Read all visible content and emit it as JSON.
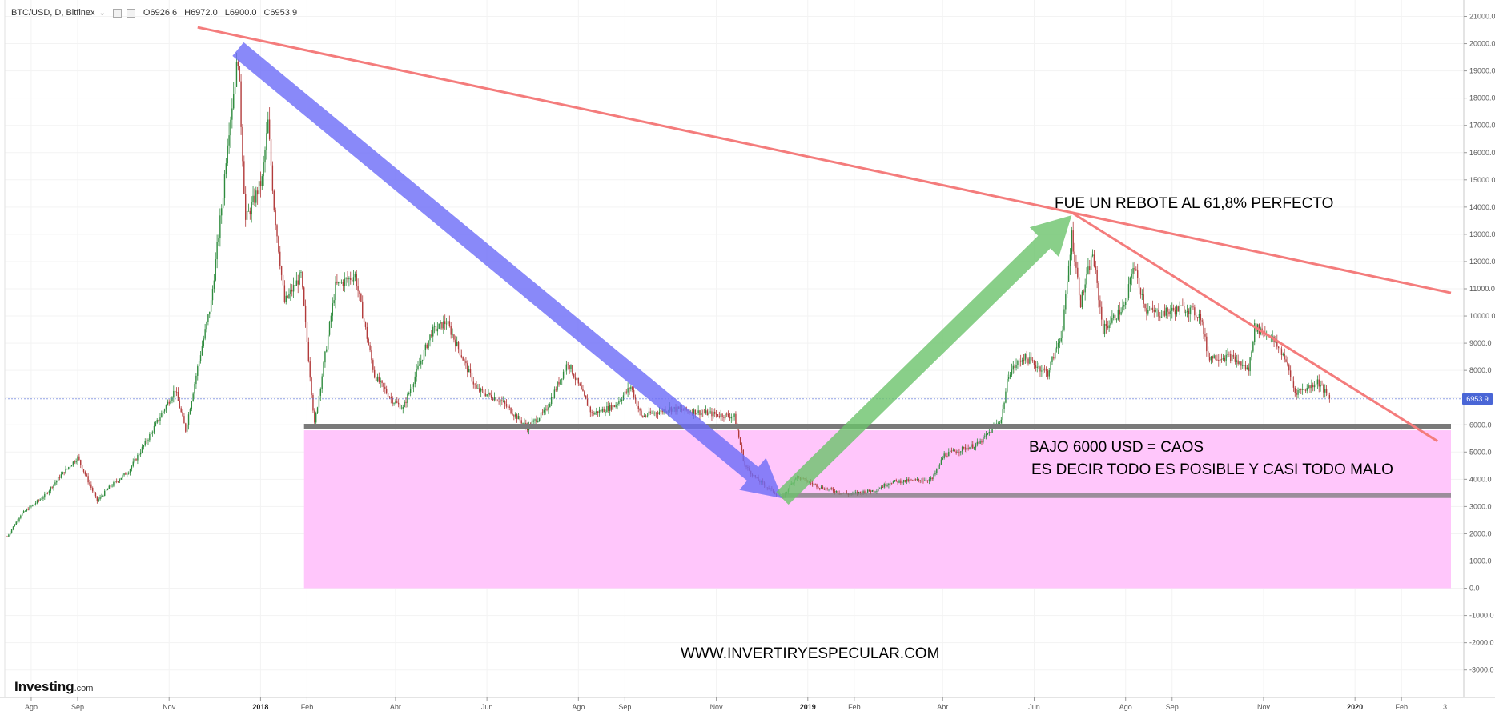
{
  "header": {
    "symbol": "BTC/USD, D, Bitfinex",
    "chevron": "⌄",
    "ohlc": {
      "open": "O6926.6",
      "high": "H6972.0",
      "low": "L6900.0",
      "close": "C6953.9"
    }
  },
  "colors": {
    "up": "#26a69a",
    "down": "#b23b3b",
    "candle_up": "#2e8b3d",
    "candle_down": "#b23b3b",
    "trendline": "#f47c7c",
    "blue_arrow": "#6b6bf7",
    "green_arrow": "#6cc36c",
    "support": "#7a7a7a",
    "pink_zone": "#ffc6fb",
    "last_price_label": "#4a66d6",
    "axis_text": "#555555"
  },
  "annotations": {
    "rebound": "FUE UN REBOTE AL 61,8% PERFECTO",
    "below_line1": "BAJO 6000 USD = CAOS",
    "below_line2": "ES DECIR TODO ES POSIBLE Y CASI TODO MALO",
    "website": "WWW.INVERTIRYESPECULAR.COM"
  },
  "brand": {
    "name": "Investing",
    "suffix": ".com"
  },
  "chart_data": {
    "type": "candlestick",
    "symbol": "BTC/USD",
    "timeframe": "D",
    "exchange": "Bitfinex",
    "last_price": "6953.9",
    "ylim": [
      -3500,
      21500
    ],
    "y_ticks": [
      {
        "value": 21000,
        "label": "21000.0"
      },
      {
        "value": 20000,
        "label": "20000.0"
      },
      {
        "value": 19000,
        "label": "19000.0"
      },
      {
        "value": 18000,
        "label": "18000.0"
      },
      {
        "value": 17000,
        "label": "17000.0"
      },
      {
        "value": 16000,
        "label": "16000.0"
      },
      {
        "value": 15000,
        "label": "15000.0"
      },
      {
        "value": 14000,
        "label": "14000.0"
      },
      {
        "value": 13000,
        "label": "13000.0"
      },
      {
        "value": 12000,
        "label": "12000.0"
      },
      {
        "value": 11000,
        "label": "11000.0"
      },
      {
        "value": 10000,
        "label": "10000.0"
      },
      {
        "value": 9000,
        "label": "9000.0"
      },
      {
        "value": 8000,
        "label": "8000.0"
      },
      {
        "value": 7000,
        "label": "7000.0"
      },
      {
        "value": 6000,
        "label": "6000.0"
      },
      {
        "value": 5000,
        "label": "5000.0"
      },
      {
        "value": 4000,
        "label": "4000.0"
      },
      {
        "value": 3000,
        "label": "3000.0"
      },
      {
        "value": 2000,
        "label": "2000.0"
      },
      {
        "value": 1000,
        "label": "1000.0"
      },
      {
        "value": 0,
        "label": "0.0"
      },
      {
        "value": -1000,
        "label": "-1000.0"
      },
      {
        "value": -2000,
        "label": "-2000.0"
      },
      {
        "value": -3000,
        "label": "-3000.0"
      }
    ],
    "x_ticks": [
      {
        "date": "2017-08-01",
        "label": "Ago",
        "bold": false
      },
      {
        "date": "2017-09-01",
        "label": "Sep",
        "bold": false
      },
      {
        "date": "2017-11-01",
        "label": "Nov",
        "bold": false
      },
      {
        "date": "2018-01-01",
        "label": "2018",
        "bold": true
      },
      {
        "date": "2018-02-01",
        "label": "Feb",
        "bold": false
      },
      {
        "date": "2018-04-01",
        "label": "Abr",
        "bold": false
      },
      {
        "date": "2018-06-01",
        "label": "Jun",
        "bold": false
      },
      {
        "date": "2018-08-01",
        "label": "Ago",
        "bold": false
      },
      {
        "date": "2018-09-01",
        "label": "Sep",
        "bold": false
      },
      {
        "date": "2018-11-01",
        "label": "Nov",
        "bold": false
      },
      {
        "date": "2019-01-01",
        "label": "2019",
        "bold": true
      },
      {
        "date": "2019-02-01",
        "label": "Feb",
        "bold": false
      },
      {
        "date": "2019-04-01",
        "label": "Abr",
        "bold": false
      },
      {
        "date": "2019-06-01",
        "label": "Jun",
        "bold": false
      },
      {
        "date": "2019-08-01",
        "label": "Ago",
        "bold": false
      },
      {
        "date": "2019-09-01",
        "label": "Sep",
        "bold": false
      },
      {
        "date": "2019-11-01",
        "label": "Nov",
        "bold": false
      },
      {
        "date": "2020-01-01",
        "label": "2020",
        "bold": true
      },
      {
        "date": "2020-02-01",
        "label": "Feb",
        "bold": false
      },
      {
        "date": "2020-03-01",
        "label": "3",
        "bold": false
      }
    ],
    "price_path": [
      {
        "date": "2017-07-16",
        "price": 1900
      },
      {
        "date": "2017-07-25",
        "price": 2700
      },
      {
        "date": "2017-08-10",
        "price": 3400
      },
      {
        "date": "2017-08-20",
        "price": 4100
      },
      {
        "date": "2017-09-01",
        "price": 4800
      },
      {
        "date": "2017-09-14",
        "price": 3200
      },
      {
        "date": "2017-09-22",
        "price": 3700
      },
      {
        "date": "2017-10-05",
        "price": 4300
      },
      {
        "date": "2017-10-20",
        "price": 5700
      },
      {
        "date": "2017-11-05",
        "price": 7300
      },
      {
        "date": "2017-11-12",
        "price": 5800
      },
      {
        "date": "2017-11-20",
        "price": 8100
      },
      {
        "date": "2017-11-29",
        "price": 10500
      },
      {
        "date": "2017-12-07",
        "price": 14500
      },
      {
        "date": "2017-12-10",
        "price": 16500
      },
      {
        "date": "2017-12-17",
        "price": 19500
      },
      {
        "date": "2017-12-22",
        "price": 13500
      },
      {
        "date": "2018-01-02",
        "price": 15000
      },
      {
        "date": "2018-01-06",
        "price": 17100
      },
      {
        "date": "2018-01-10",
        "price": 14000
      },
      {
        "date": "2018-01-17",
        "price": 10500
      },
      {
        "date": "2018-01-28",
        "price": 11500
      },
      {
        "date": "2018-02-06",
        "price": 6000
      },
      {
        "date": "2018-02-20",
        "price": 11100
      },
      {
        "date": "2018-03-05",
        "price": 11500
      },
      {
        "date": "2018-03-18",
        "price": 7800
      },
      {
        "date": "2018-03-30",
        "price": 6900
      },
      {
        "date": "2018-04-06",
        "price": 6600
      },
      {
        "date": "2018-04-25",
        "price": 9400
      },
      {
        "date": "2018-05-05",
        "price": 9800
      },
      {
        "date": "2018-05-25",
        "price": 7300
      },
      {
        "date": "2018-06-10",
        "price": 6900
      },
      {
        "date": "2018-06-28",
        "price": 5900
      },
      {
        "date": "2018-07-10",
        "price": 6500
      },
      {
        "date": "2018-07-25",
        "price": 8300
      },
      {
        "date": "2018-08-10",
        "price": 6400
      },
      {
        "date": "2018-08-25",
        "price": 6700
      },
      {
        "date": "2018-09-05",
        "price": 7400
      },
      {
        "date": "2018-09-12",
        "price": 6300
      },
      {
        "date": "2018-10-01",
        "price": 6600
      },
      {
        "date": "2018-10-15",
        "price": 6500
      },
      {
        "date": "2018-11-13",
        "price": 6300
      },
      {
        "date": "2018-11-20",
        "price": 4500
      },
      {
        "date": "2018-11-28",
        "price": 4000
      },
      {
        "date": "2018-12-15",
        "price": 3300
      },
      {
        "date": "2018-12-24",
        "price": 4100
      },
      {
        "date": "2019-01-10",
        "price": 3700
      },
      {
        "date": "2019-01-28",
        "price": 3450
      },
      {
        "date": "2019-02-15",
        "price": 3600
      },
      {
        "date": "2019-02-25",
        "price": 3900
      },
      {
        "date": "2019-03-25",
        "price": 4000
      },
      {
        "date": "2019-04-02",
        "price": 4900
      },
      {
        "date": "2019-04-25",
        "price": 5300
      },
      {
        "date": "2019-05-10",
        "price": 6200
      },
      {
        "date": "2019-05-15",
        "price": 7900
      },
      {
        "date": "2019-05-25",
        "price": 8500
      },
      {
        "date": "2019-06-10",
        "price": 7900
      },
      {
        "date": "2019-06-20",
        "price": 9500
      },
      {
        "date": "2019-06-26",
        "price": 13000
      },
      {
        "date": "2019-07-02",
        "price": 10500
      },
      {
        "date": "2019-07-10",
        "price": 12300
      },
      {
        "date": "2019-07-17",
        "price": 9500
      },
      {
        "date": "2019-08-01",
        "price": 10400
      },
      {
        "date": "2019-08-06",
        "price": 11900
      },
      {
        "date": "2019-08-15",
        "price": 10200
      },
      {
        "date": "2019-08-25",
        "price": 10100
      },
      {
        "date": "2019-09-10",
        "price": 10300
      },
      {
        "date": "2019-09-20",
        "price": 10000
      },
      {
        "date": "2019-09-25",
        "price": 8500
      },
      {
        "date": "2019-10-10",
        "price": 8500
      },
      {
        "date": "2019-10-22",
        "price": 8000
      },
      {
        "date": "2019-10-26",
        "price": 9600
      },
      {
        "date": "2019-11-05",
        "price": 9300
      },
      {
        "date": "2019-11-15",
        "price": 8500
      },
      {
        "date": "2019-11-22",
        "price": 7200
      },
      {
        "date": "2019-12-02",
        "price": 7400
      },
      {
        "date": "2019-12-07",
        "price": 7600
      },
      {
        "date": "2019-12-15",
        "price": 6954
      }
    ],
    "drawings": {
      "trendline_upper": {
        "from": {
          "date": "2017-11-20",
          "price": 20600
        },
        "to": {
          "date": "2020-03-05",
          "price": 10850
        }
      },
      "trendline_lower": {
        "from": {
          "date": "2019-06-26",
          "price": 13800
        },
        "to": {
          "date": "2020-02-25",
          "price": 5400
        }
      },
      "blue_arrow": {
        "from": {
          "date": "2017-12-17",
          "price": 19800
        },
        "to": {
          "date": "2018-12-15",
          "price": 3300
        }
      },
      "green_arrow": {
        "from": {
          "date": "2018-12-15",
          "price": 3300
        },
        "to": {
          "date": "2019-06-26",
          "price": 13700
        }
      },
      "support_6000": {
        "from_date": "2018-01-30",
        "to_date": "2020-03-05",
        "price": 5950
      },
      "support_3400": {
        "from_date": "2018-12-15",
        "to_date": "2020-03-05",
        "price": 3400
      },
      "chaos_zone": {
        "from_date": "2018-01-30",
        "to_date": "2020-03-05",
        "top_price": 5800,
        "bottom_price": 0
      }
    }
  }
}
